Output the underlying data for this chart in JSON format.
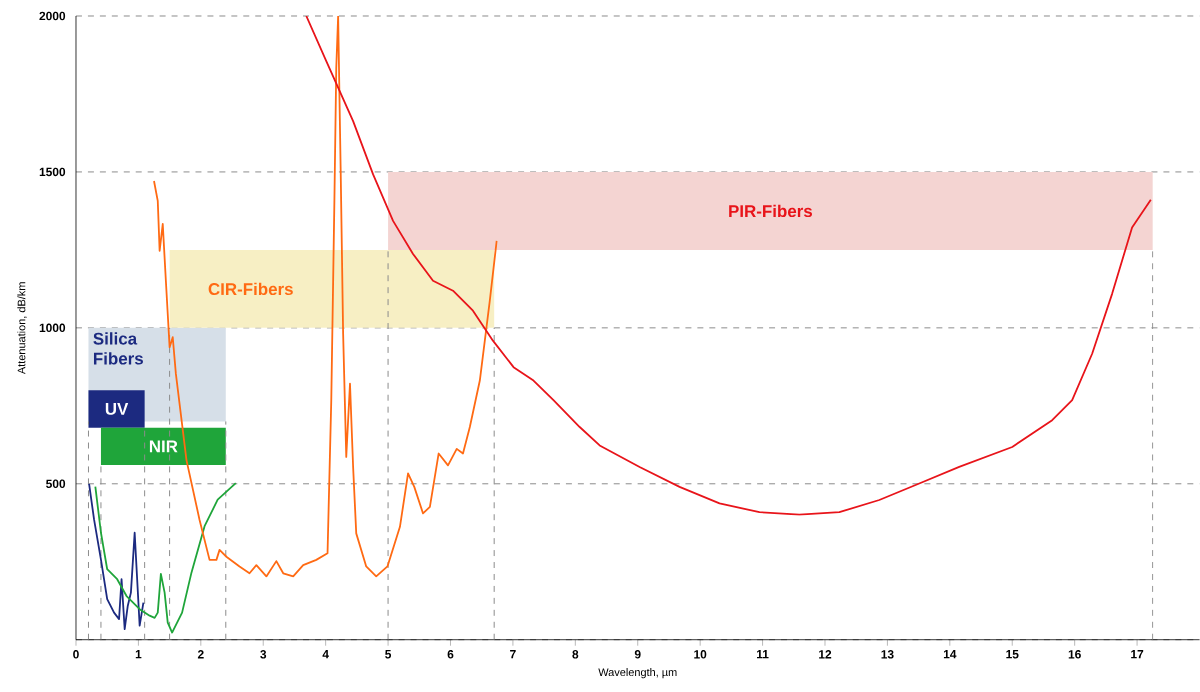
{
  "chart_data": {
    "type": "line",
    "xlabel": "Wavelength, µm",
    "ylabel": "Attenuation, dB/km",
    "xlim": [
      0,
      18
    ],
    "ylim": [
      0,
      2000
    ],
    "xticks": [
      0,
      1,
      2,
      3,
      4,
      5,
      6,
      7,
      8,
      9,
      10,
      11,
      12,
      13,
      14,
      15,
      16,
      17
    ],
    "yticks": [
      {
        "value": 0,
        "label": null
      },
      500,
      1000,
      1500,
      2000
    ],
    "grid": "y",
    "marker": "none",
    "line_style": "solid",
    "series": [
      {
        "color": "#1c2a80",
        "x": [
          0.21,
          0.29,
          0.4,
          0.5,
          0.61,
          0.69,
          0.73,
          0.78,
          0.83,
          0.88,
          0.94,
          0.98,
          1.02,
          1.08
        ],
        "values": [
          500,
          385,
          257,
          130,
          87,
          66,
          194,
          34,
          109,
          151,
          343,
          194,
          45,
          119
        ]
      },
      {
        "color": "#1fa53a",
        "x": [
          0.31,
          0.4,
          0.5,
          0.66,
          0.81,
          1.02,
          1.18,
          1.26,
          1.31,
          1.36,
          1.42,
          1.47,
          1.54,
          1.7,
          1.85,
          2.06,
          2.27,
          2.56
        ],
        "values": [
          491,
          343,
          226,
          194,
          140,
          98,
          77,
          70,
          87,
          211,
          151,
          55,
          23,
          87,
          215,
          364,
          449,
          502
        ]
      },
      {
        "color": "#ff6a13",
        "x": [
          1.25,
          1.31,
          1.34,
          1.39,
          1.44,
          1.5,
          1.55,
          1.6,
          1.77,
          1.98,
          2.14,
          2.25,
          2.3,
          2.41,
          2.62,
          2.78,
          2.89,
          3.05,
          3.21,
          3.32,
          3.48,
          3.64,
          3.85,
          4.03,
          4.09,
          4.14,
          4.17,
          4.2,
          4.24,
          4.28,
          4.33,
          4.39,
          4.44,
          4.49,
          4.65,
          4.81,
          4.99,
          5.19,
          5.32,
          5.42,
          5.56,
          5.67,
          5.81,
          5.96,
          6.1,
          6.2,
          6.31,
          6.47,
          6.63,
          6.74
        ],
        "values": [
          1471,
          1407,
          1247,
          1333,
          1151,
          938,
          970,
          853,
          576,
          384,
          256,
          256,
          288,
          266,
          235,
          213,
          239,
          203,
          252,
          213,
          203,
          239,
          256,
          277,
          767,
          1407,
          1834,
          2000,
          1514,
          981,
          586,
          821,
          554,
          341,
          235,
          203,
          235,
          362,
          533,
          490,
          405,
          426,
          597,
          559,
          612,
          597,
          682,
          831,
          1087,
          1279
        ]
      },
      {
        "color": "#e8141a",
        "x": [
          3.69,
          4.01,
          4.44,
          4.76,
          5.08,
          5.4,
          5.72,
          6.04,
          6.36,
          6.68,
          7.01,
          7.33,
          7.65,
          8.07,
          8.39,
          9.03,
          9.67,
          10.31,
          10.95,
          11.59,
          12.23,
          12.87,
          13.51,
          14.15,
          15.0,
          15.64,
          15.96,
          16.28,
          16.6,
          16.92,
          17.22
        ],
        "values": [
          2000,
          1855,
          1663,
          1492,
          1343,
          1237,
          1151,
          1119,
          1055,
          959,
          874,
          831,
          768,
          682,
          623,
          554,
          490,
          437,
          409,
          401,
          409,
          448,
          501,
          554,
          618,
          704,
          768,
          917,
          1109,
          1322,
          1411
        ]
      }
    ],
    "ref_lines": [
      {
        "axis": "x",
        "value": 0.2,
        "color": "#8c8c8c",
        "line_style": "dashed"
      },
      {
        "axis": "x",
        "value": 0.4,
        "color": "#8c8c8c",
        "line_style": "dashed"
      },
      {
        "axis": "x",
        "value": 1.1,
        "color": "#8c8c8c",
        "line_style": "dashed"
      },
      {
        "axis": "x",
        "value": 1.5,
        "color": "#8c8c8c",
        "line_style": "dashed"
      },
      {
        "axis": "x",
        "value": 2.4,
        "color": "#8c8c8c",
        "line_style": "dashed"
      },
      {
        "axis": "x",
        "value": 5,
        "color": "#8c8c8c",
        "line_style": "dashed"
      },
      {
        "axis": "x",
        "value": 6.7,
        "color": "#8c8c8c",
        "line_style": "dashed"
      },
      {
        "axis": "x",
        "value": 17.25,
        "color": "#8c8c8c",
        "line_style": "dashed"
      }
    ],
    "bands": [
      {
        "axis": "x",
        "from": 0.2,
        "to": 2.4,
        "label": "Silica Fibers",
        "color": "#d6dfe8"
      },
      {
        "axis": "x",
        "from": 0.2,
        "to": 1.1,
        "label": "UV",
        "color": "#1c2a80"
      },
      {
        "axis": "x",
        "from": 0.4,
        "to": 2.4,
        "label": "NIR",
        "color": "#1fa53a"
      },
      {
        "axis": "x",
        "from": 1.5,
        "to": 6.7,
        "label": "CIR-Fibers",
        "color": "#f7efc4"
      },
      {
        "axis": "x",
        "from": 5,
        "to": 17.25,
        "label": "PIR-Fibers",
        "color": "#f4d4d2"
      }
    ]
  }
}
